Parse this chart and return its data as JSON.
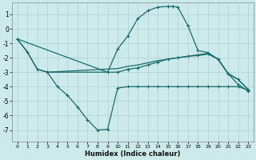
{
  "xlabel": "Humidex (Indice chaleur)",
  "bg_color": "#cceaea",
  "grid_color": "#b8d8d8",
  "line_color": "#1a6b6b",
  "xlim": [
    -0.5,
    23.5
  ],
  "ylim": [
    -7.8,
    1.8
  ],
  "yticks": [
    1,
    0,
    -1,
    -2,
    -3,
    -4,
    -5,
    -6,
    -7
  ],
  "xticks": [
    0,
    1,
    2,
    3,
    4,
    5,
    6,
    7,
    8,
    9,
    10,
    11,
    12,
    13,
    14,
    15,
    16,
    17,
    18,
    19,
    20,
    21,
    22,
    23
  ],
  "series1_x": [
    0,
    1,
    2,
    3,
    10,
    11,
    12,
    13,
    14,
    15,
    16,
    17,
    18,
    19,
    20,
    21,
    22,
    23
  ],
  "series1_y": [
    -0.7,
    -1.6,
    -2.8,
    -3.0,
    -3.0,
    -2.8,
    -2.7,
    -2.5,
    -2.3,
    -2.1,
    -2.0,
    -1.9,
    -1.8,
    -1.7,
    -2.1,
    -3.1,
    -3.5,
    -4.2
  ],
  "series2_x": [
    0,
    1,
    2,
    3,
    10,
    11,
    12,
    13,
    14,
    15,
    16,
    17,
    18,
    19,
    20,
    21,
    22,
    23
  ],
  "series2_y": [
    -0.7,
    -1.6,
    -2.8,
    -3.0,
    -2.75,
    -2.6,
    -2.5,
    -2.35,
    -2.2,
    -2.1,
    -2.0,
    -1.9,
    -1.85,
    -1.75,
    -2.1,
    -3.1,
    -3.5,
    -4.2
  ],
  "series3_x": [
    0,
    9,
    10,
    11,
    12,
    13,
    14,
    15,
    15.5,
    16,
    17,
    18,
    19,
    20,
    21,
    22,
    23
  ],
  "series3_y": [
    -0.7,
    -3.0,
    -1.4,
    -0.5,
    0.7,
    1.25,
    1.5,
    1.55,
    1.55,
    1.5,
    0.2,
    -1.5,
    -1.65,
    -2.1,
    -3.1,
    -3.85,
    -4.3
  ],
  "series4_x": [
    3,
    4,
    5,
    6,
    7,
    8,
    9,
    10,
    11,
    12,
    13,
    14,
    15,
    16,
    17,
    18,
    19,
    20,
    21,
    22,
    23
  ],
  "series4_y": [
    -3.0,
    -4.0,
    -4.6,
    -5.4,
    -6.3,
    -7.0,
    -6.95,
    -4.1,
    -4.0,
    -4.0,
    -4.0,
    -4.0,
    -4.0,
    -4.0,
    -4.0,
    -4.0,
    -4.0,
    -4.0,
    -4.0,
    -4.0,
    -4.25
  ]
}
